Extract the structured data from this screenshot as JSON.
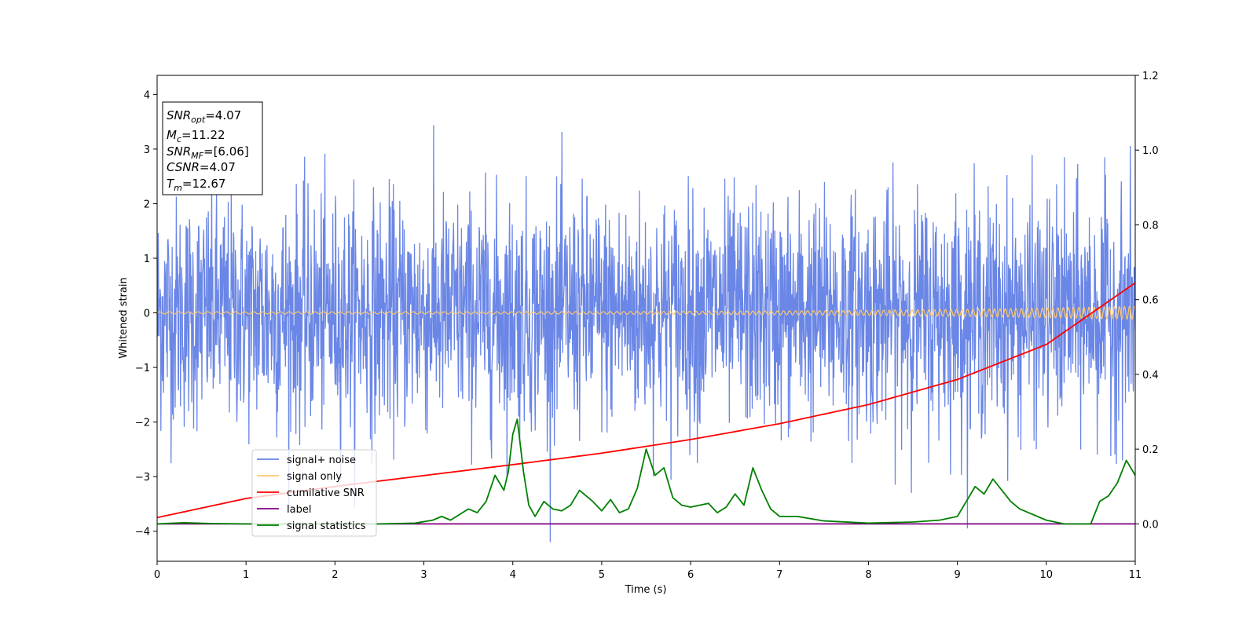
{
  "chart_data": {
    "type": "line",
    "xlabel": "Time (s)",
    "ylabel": "Whitened strain",
    "xlim": [
      0,
      11
    ],
    "ylim": [
      -4.55,
      4.35
    ],
    "y2lim": [
      -0.1,
      1.2
    ],
    "x_ticks": [
      "0",
      "1",
      "2",
      "3",
      "4",
      "5",
      "6",
      "7",
      "8",
      "9",
      "10",
      "11"
    ],
    "y_ticks": [
      "4",
      "3",
      "2",
      "1",
      "0",
      "−1",
      "−2",
      "−3",
      "−4"
    ],
    "y2_ticks": [
      "1.2",
      "1.0",
      "0.8",
      "0.6",
      "0.4",
      "0.2",
      "0.0"
    ],
    "legend_position": "lower-left",
    "series": [
      {
        "name": "signal+ noise",
        "color": "#6a86e6",
        "axis": "left",
        "kind": "noise",
        "note_values": "dense noise band roughly between -3 and +3.9"
      },
      {
        "name": "signal only",
        "color": "#ffc86e",
        "axis": "left",
        "kind": "chirp",
        "amplitude_start": 0.02,
        "amplitude_end": 0.12
      },
      {
        "name": "cumilative SNR",
        "color": "#ff0000",
        "axis": "left",
        "x": [
          0,
          1,
          2,
          3,
          4,
          5,
          6,
          7,
          8,
          9,
          10,
          11
        ],
        "y": [
          -3.75,
          -3.4,
          -3.18,
          -2.98,
          -2.78,
          -2.57,
          -2.32,
          -2.03,
          -1.68,
          -1.22,
          -0.58,
          0.55
        ]
      },
      {
        "name": "label",
        "color": "#800080",
        "axis": "right",
        "x": [
          0,
          11
        ],
        "y": [
          0.0,
          0.0
        ]
      },
      {
        "name": "signal statistics",
        "color": "#008000",
        "axis": "right",
        "x": [
          0,
          0.3,
          0.6,
          1,
          1.5,
          2,
          2.5,
          2.9,
          3.1,
          3.2,
          3.3,
          3.4,
          3.5,
          3.6,
          3.7,
          3.8,
          3.9,
          3.95,
          4.0,
          4.05,
          4.12,
          4.18,
          4.25,
          4.35,
          4.45,
          4.55,
          4.65,
          4.75,
          4.85,
          4.9,
          5.0,
          5.1,
          5.2,
          5.3,
          5.4,
          5.5,
          5.6,
          5.7,
          5.8,
          5.9,
          6.0,
          6.1,
          6.2,
          6.3,
          6.4,
          6.5,
          6.6,
          6.7,
          6.8,
          6.9,
          7.0,
          7.2,
          7.5,
          8.0,
          8.5,
          8.8,
          9.0,
          9.1,
          9.2,
          9.3,
          9.4,
          9.5,
          9.6,
          9.7,
          9.8,
          10.0,
          10.2,
          10.5,
          10.6,
          10.7,
          10.8,
          10.9,
          11.0
        ],
        "y": [
          0.0,
          0.003,
          0.001,
          0.0,
          0.0,
          0.0,
          0.0,
          0.002,
          0.01,
          0.02,
          0.01,
          0.025,
          0.04,
          0.03,
          0.06,
          0.13,
          0.09,
          0.14,
          0.24,
          0.28,
          0.14,
          0.05,
          0.02,
          0.06,
          0.04,
          0.035,
          0.05,
          0.09,
          0.07,
          0.06,
          0.035,
          0.065,
          0.03,
          0.04,
          0.095,
          0.2,
          0.13,
          0.15,
          0.07,
          0.05,
          0.045,
          0.05,
          0.055,
          0.03,
          0.045,
          0.08,
          0.05,
          0.15,
          0.09,
          0.04,
          0.02,
          0.02,
          0.008,
          0.002,
          0.005,
          0.01,
          0.02,
          0.06,
          0.1,
          0.08,
          0.12,
          0.09,
          0.06,
          0.04,
          0.03,
          0.01,
          0.0,
          0.0,
          0.06,
          0.075,
          0.11,
          0.17,
          0.13
        ]
      }
    ],
    "annotation": [
      {
        "sym": "SNR",
        "sub": "opt",
        "value": "=4.07"
      },
      {
        "sym": "M",
        "sub": "c",
        "value": "=11.22"
      },
      {
        "sym": "SNR",
        "sub": "MF",
        "value": "=[6.06]"
      },
      {
        "sym": "CSNR",
        "sub": "",
        "value": "=4.07"
      },
      {
        "sym": "T",
        "sub": "m",
        "value": "=12.67"
      }
    ]
  }
}
